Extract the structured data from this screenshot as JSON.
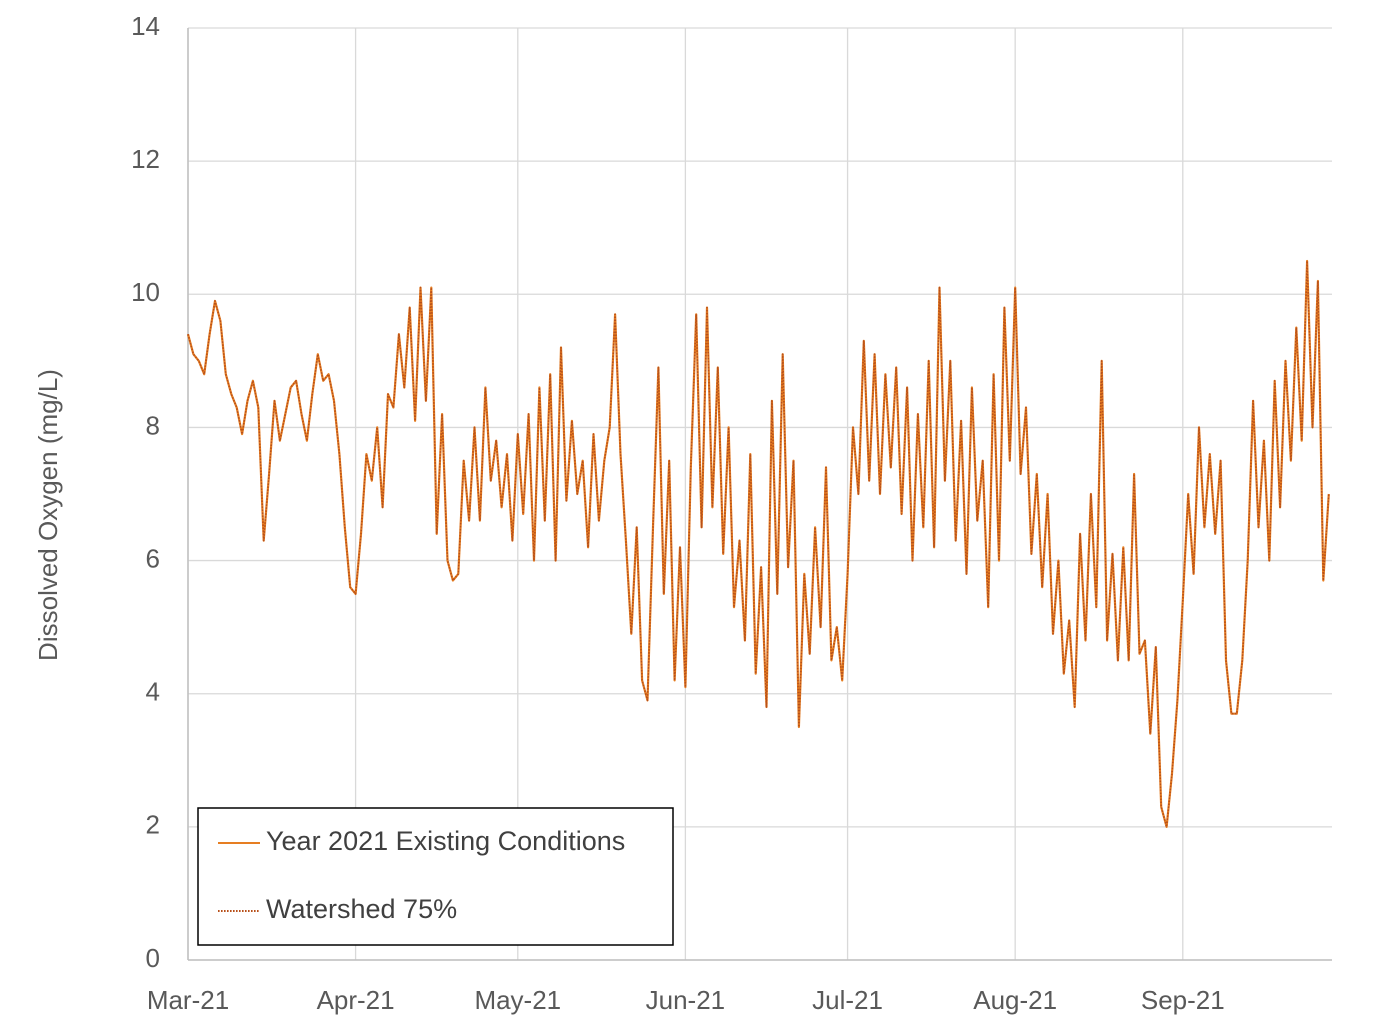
{
  "chart_data": {
    "type": "line",
    "y_label": "Dissolved Oxygen (mg/L)",
    "x": [
      0,
      1,
      2,
      3,
      4,
      5,
      6,
      7,
      8,
      9,
      10,
      11,
      12,
      13,
      14,
      15,
      16,
      17,
      18,
      19,
      20,
      21,
      22,
      23,
      24,
      25,
      26,
      27,
      28,
      29,
      30,
      31,
      32,
      33,
      34,
      35,
      36,
      37,
      38,
      39,
      40,
      41,
      42,
      43,
      44,
      45,
      46,
      47,
      48,
      49,
      50,
      51,
      52,
      53,
      54,
      55,
      56,
      57,
      58,
      59,
      60,
      61,
      62,
      63,
      64,
      65,
      66,
      67,
      68,
      69,
      70,
      71,
      72,
      73,
      74,
      75,
      76,
      77,
      78,
      79,
      80,
      81,
      82,
      83,
      84,
      85,
      86,
      87,
      88,
      89,
      90,
      91,
      92,
      93,
      94,
      95,
      96,
      97,
      98,
      99,
      100,
      101,
      102,
      103,
      104,
      105,
      106,
      107,
      108,
      109,
      110,
      111,
      112,
      113,
      114,
      115,
      116,
      117,
      118,
      119,
      120,
      121,
      122,
      123,
      124,
      125,
      126,
      127,
      128,
      129,
      130,
      131,
      132,
      133,
      134,
      135,
      136,
      137,
      138,
      139,
      140,
      141,
      142,
      143,
      144,
      145,
      146,
      147,
      148,
      149,
      150,
      151,
      152,
      153,
      154,
      155,
      156,
      157,
      158,
      159,
      160,
      161,
      162,
      163,
      164,
      165,
      166,
      167,
      168,
      169,
      170,
      171,
      172,
      173,
      174,
      175,
      176,
      177,
      178,
      179,
      180,
      181,
      182,
      183,
      184,
      185,
      186,
      187,
      188,
      189,
      190,
      191,
      192,
      193,
      194,
      195,
      196,
      197,
      198,
      199,
      200,
      201,
      202,
      203,
      204,
      205,
      206,
      207,
      208,
      209,
      210,
      211
    ],
    "series": [
      {
        "name": "Year 2021 Existing Conditions",
        "color": "#e67e22",
        "dash": "solid",
        "values": [
          9.4,
          9.1,
          9.0,
          8.8,
          9.4,
          9.9,
          9.6,
          8.8,
          8.5,
          8.3,
          7.9,
          8.4,
          8.7,
          8.3,
          6.3,
          7.3,
          8.4,
          7.8,
          8.2,
          8.6,
          8.7,
          8.2,
          7.8,
          8.5,
          9.1,
          8.7,
          8.8,
          8.4,
          7.6,
          6.5,
          5.6,
          5.5,
          6.4,
          7.6,
          7.2,
          8.0,
          6.8,
          8.5,
          8.3,
          9.4,
          8.6,
          9.8,
          8.1,
          10.1,
          8.4,
          10.1,
          6.4,
          8.2,
          6.0,
          5.7,
          5.8,
          7.5,
          6.6,
          8.0,
          6.6,
          8.6,
          7.2,
          7.8,
          6.8,
          7.6,
          6.3,
          7.9,
          6.7,
          8.2,
          6.0,
          8.6,
          6.6,
          8.8,
          6.0,
          9.2,
          6.9,
          8.1,
          7.0,
          7.5,
          6.2,
          7.9,
          6.6,
          7.5,
          8.0,
          9.7,
          7.6,
          6.3,
          4.9,
          6.5,
          4.2,
          3.9,
          6.5,
          8.9,
          5.5,
          7.5,
          4.2,
          6.2,
          4.1,
          7.4,
          9.7,
          6.5,
          9.8,
          6.8,
          8.9,
          6.1,
          8.0,
          5.3,
          6.3,
          4.8,
          7.6,
          4.3,
          5.9,
          3.8,
          8.4,
          5.5,
          9.1,
          5.9,
          7.5,
          3.5,
          5.8,
          4.6,
          6.5,
          5.0,
          7.4,
          4.5,
          5.0,
          4.2,
          5.8,
          8.0,
          7.0,
          9.3,
          7.2,
          9.1,
          7.0,
          8.8,
          7.4,
          8.9,
          6.7,
          8.6,
          6.0,
          8.2,
          6.5,
          9.0,
          6.2,
          10.1,
          7.2,
          9.0,
          6.3,
          8.1,
          5.8,
          8.6,
          6.6,
          7.5,
          5.3,
          8.8,
          6.0,
          9.8,
          7.5,
          10.1,
          7.3,
          8.3,
          6.1,
          7.3,
          5.6,
          7.0,
          4.9,
          6.0,
          4.3,
          5.1,
          3.8,
          6.4,
          4.8,
          7.0,
          5.3,
          9.0,
          4.8,
          6.1,
          4.5,
          6.2,
          4.5,
          7.3,
          4.6,
          4.8,
          3.4,
          4.7,
          2.3,
          2.0,
          2.8,
          3.9,
          5.4,
          7.0,
          5.8,
          8.0,
          6.5,
          7.6,
          6.4,
          7.5,
          4.5,
          3.7,
          3.7,
          4.5,
          6.0,
          8.4,
          6.5,
          7.8,
          6.0,
          8.7,
          6.8,
          9.0,
          7.5,
          9.5,
          7.8,
          10.5,
          8.0,
          10.2,
          5.7,
          7.0
        ]
      },
      {
        "name": "Watershed 75%",
        "color": "#b8501a",
        "dash": "dotted",
        "values": [
          9.4,
          9.1,
          9.0,
          8.8,
          9.4,
          9.9,
          9.6,
          8.8,
          8.5,
          8.3,
          7.9,
          8.4,
          8.7,
          8.3,
          6.3,
          7.3,
          8.4,
          7.8,
          8.2,
          8.6,
          8.7,
          8.2,
          7.8,
          8.5,
          9.1,
          8.7,
          8.8,
          8.4,
          7.6,
          6.5,
          5.6,
          5.5,
          6.4,
          7.6,
          7.2,
          8.0,
          6.8,
          8.5,
          8.3,
          9.4,
          8.6,
          9.8,
          8.1,
          10.1,
          8.4,
          10.1,
          6.4,
          8.2,
          6.0,
          5.7,
          5.8,
          7.5,
          6.6,
          8.0,
          6.6,
          8.6,
          7.2,
          7.8,
          6.8,
          7.6,
          6.3,
          7.9,
          6.7,
          8.2,
          6.0,
          8.6,
          6.6,
          8.8,
          6.0,
          9.2,
          6.9,
          8.1,
          7.0,
          7.5,
          6.2,
          7.9,
          6.6,
          7.5,
          8.0,
          9.7,
          7.6,
          6.3,
          4.9,
          6.5,
          4.2,
          3.9,
          6.5,
          8.9,
          5.5,
          7.5,
          4.2,
          6.2,
          4.1,
          7.4,
          9.7,
          6.5,
          9.8,
          6.8,
          8.9,
          6.1,
          8.0,
          5.3,
          6.3,
          4.8,
          7.6,
          4.3,
          5.9,
          3.8,
          8.4,
          5.5,
          9.1,
          5.9,
          7.5,
          3.5,
          5.8,
          4.6,
          6.5,
          5.0,
          7.4,
          4.5,
          5.0,
          4.2,
          5.8,
          8.0,
          7.0,
          9.3,
          7.2,
          9.1,
          7.0,
          8.8,
          7.4,
          8.9,
          6.7,
          8.6,
          6.0,
          8.2,
          6.5,
          9.0,
          6.2,
          10.1,
          7.2,
          9.0,
          6.3,
          8.1,
          5.8,
          8.6,
          6.6,
          7.5,
          5.3,
          8.8,
          6.0,
          9.8,
          7.5,
          10.1,
          7.3,
          8.3,
          6.1,
          7.3,
          5.6,
          7.0,
          4.9,
          6.0,
          4.3,
          5.1,
          3.8,
          6.4,
          4.8,
          7.0,
          5.3,
          9.0,
          4.8,
          6.1,
          4.5,
          6.2,
          4.5,
          7.3,
          4.6,
          4.8,
          3.4,
          4.7,
          2.3,
          2.0,
          2.8,
          3.9,
          5.4,
          7.0,
          5.8,
          8.0,
          6.5,
          7.6,
          6.4,
          7.5,
          4.5,
          3.7,
          3.7,
          4.5,
          6.0,
          8.4,
          6.5,
          7.8,
          6.0,
          8.7,
          6.8,
          9.0,
          7.5,
          9.5,
          7.8,
          10.5,
          8.0,
          10.2,
          5.7,
          7.0
        ]
      }
    ],
    "xlim": [
      0,
      211.6
    ],
    "xticks": [
      {
        "value": 0,
        "label": "Mar-21"
      },
      {
        "value": 31,
        "label": "Apr-21"
      },
      {
        "value": 61,
        "label": "May-21"
      },
      {
        "value": 92,
        "label": "Jun-21"
      },
      {
        "value": 122,
        "label": "Jul-21"
      },
      {
        "value": 153,
        "label": "Aug-21"
      },
      {
        "value": 184,
        "label": "Sep-21"
      }
    ],
    "ylim": [
      0,
      14
    ],
    "yticks": [
      0,
      2,
      4,
      6,
      8,
      10,
      12,
      14
    ],
    "grid": true,
    "legend": "lower left"
  }
}
